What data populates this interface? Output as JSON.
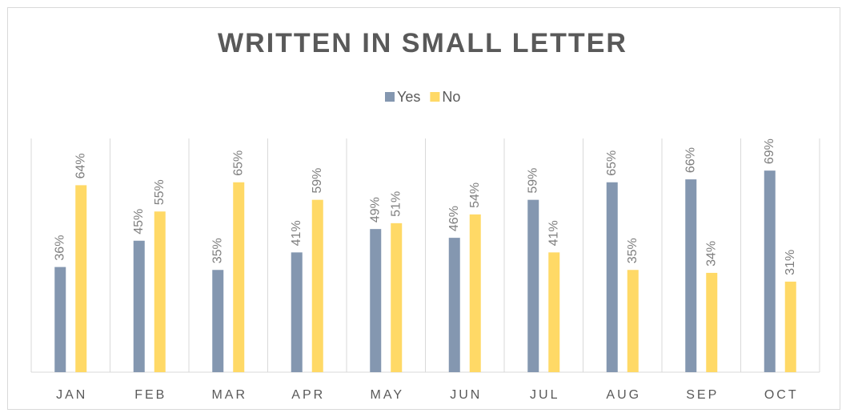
{
  "chart_data": {
    "type": "bar",
    "title": "WRITTEN IN SMALL LETTER",
    "categories": [
      "JAN",
      "FEB",
      "MAR",
      "APR",
      "MAY",
      "JUN",
      "JUL",
      "AUG",
      "SEP",
      "OCT"
    ],
    "series": [
      {
        "name": "Yes",
        "color": "#8497b0",
        "values": [
          36,
          45,
          35,
          41,
          49,
          46,
          59,
          65,
          66,
          69
        ],
        "value_labels": [
          "36%",
          "45%",
          "35%",
          "41%",
          "49%",
          "46%",
          "59%",
          "65%",
          "66%",
          "69%"
        ]
      },
      {
        "name": "No",
        "color": "#ffd966",
        "values": [
          64,
          55,
          65,
          59,
          51,
          54,
          41,
          35,
          34,
          31
        ],
        "value_labels": [
          "64%",
          "55%",
          "65%",
          "59%",
          "51%",
          "54%",
          "41%",
          "35%",
          "34%",
          "31%"
        ]
      }
    ],
    "ylim": [
      0,
      80
    ],
    "legend": "top"
  }
}
